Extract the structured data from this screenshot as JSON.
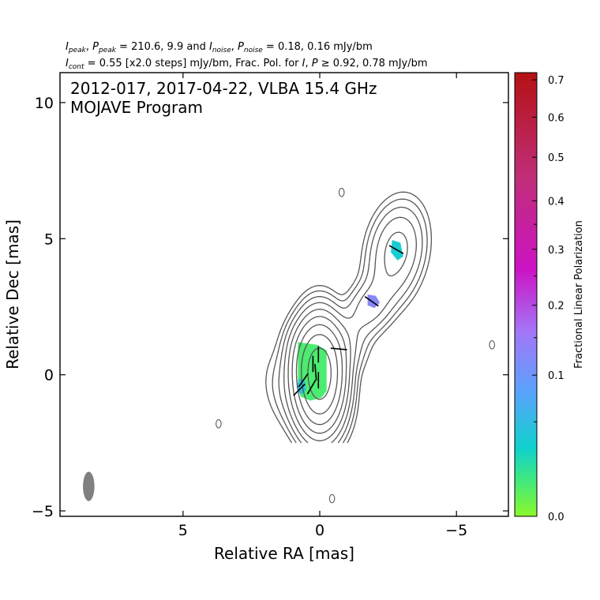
{
  "header": {
    "line1": [
      {
        "t": "I",
        "i": true
      },
      {
        "t": "peak",
        "sub": true
      },
      {
        "t": ", "
      },
      {
        "t": "P",
        "i": true
      },
      {
        "t": "peak",
        "sub": true
      },
      {
        "t": " = 210.6, 9.9 and "
      },
      {
        "t": "I",
        "i": true
      },
      {
        "t": "noise",
        "sub": true
      },
      {
        "t": ", "
      },
      {
        "t": "P",
        "i": true
      },
      {
        "t": "noise",
        "sub": true
      },
      {
        "t": " = 0.18, 0.16 mJy/bm"
      }
    ],
    "line2": [
      {
        "t": "I",
        "i": true
      },
      {
        "t": "cont",
        "sub": true
      },
      {
        "t": " = 0.55 [x2.0 steps] mJy/bm, Frac. Pol. for "
      },
      {
        "t": "I",
        "i": true
      },
      {
        "t": ", "
      },
      {
        "t": "P",
        "i": true
      },
      {
        "t": " ≥ 0.92, 0.78 mJy/bm"
      }
    ]
  },
  "chart_data": {
    "type": "contour",
    "title_lines": [
      "2012-017, 2017-04-22, VLBA 15.4 GHz",
      "MOJAVE Program"
    ],
    "xlabel": "Relative RA [mas]",
    "ylabel": "Relative Dec [mas]",
    "xlim": [
      9.5,
      -6.9
    ],
    "ylim": [
      -5.2,
      11.1
    ],
    "x_ticks": [
      {
        "value": 5,
        "label": "5"
      },
      {
        "value": 0,
        "label": "0"
      },
      {
        "value": -5,
        "label": "−5"
      }
    ],
    "y_ticks": [
      {
        "value": 10,
        "label": "10"
      },
      {
        "value": 5,
        "label": "5"
      },
      {
        "value": 0,
        "label": "0"
      },
      {
        "value": -5,
        "label": "−5"
      }
    ],
    "grid": false,
    "contour_base_mJy": 0.55,
    "contour_step_factor": 2.0,
    "contour_levels": 9,
    "contour_color": "#555555",
    "beam": {
      "x": 8.45,
      "y": -4.1,
      "major_mas": 1.08,
      "minor_mas": 0.42,
      "pa_deg": 0,
      "color": "#808080"
    },
    "components": [
      {
        "name": "core",
        "x": 0.0,
        "y": 0.0
      },
      {
        "name": "inner-jet",
        "x": -0.5,
        "y": 0.8
      },
      {
        "name": "jet-knot",
        "x": -1.9,
        "y": 2.6
      },
      {
        "name": "outer-knot",
        "x": -2.8,
        "y": 4.5
      }
    ],
    "noise_specks": [
      {
        "x": -0.8,
        "y": 6.7
      },
      {
        "x": 3.7,
        "y": -1.8
      },
      {
        "x": -6.3,
        "y": 1.1
      },
      {
        "x": -0.45,
        "y": -4.55
      }
    ],
    "polarization_patches": [
      {
        "name": "core-region",
        "fracpol": 0.05
      },
      {
        "name": "core-south",
        "fracpol": 0.14
      },
      {
        "name": "jet-knot",
        "fracpol": 0.26
      },
      {
        "name": "outer-knot",
        "fracpol": 0.12
      }
    ],
    "evpa_vectors": [
      {
        "x": -2.8,
        "y": 4.6,
        "angle_deg": 60
      },
      {
        "x": -1.9,
        "y": 2.7,
        "angle_deg": 55
      },
      {
        "x": -0.7,
        "y": 0.95,
        "angle_deg": 85
      },
      {
        "x": 0.05,
        "y": 0.75,
        "angle_deg": 0
      },
      {
        "x": 0.15,
        "y": 0.1,
        "angle_deg": 5
      },
      {
        "x": 0.25,
        "y": 0.4,
        "angle_deg": 0
      },
      {
        "x": 0.05,
        "y": -0.2,
        "angle_deg": 0
      },
      {
        "x": 0.3,
        "y": -0.45,
        "angle_deg": -30
      },
      {
        "x": 0.6,
        "y": -0.2,
        "angle_deg": -35
      },
      {
        "x": 0.75,
        "y": -0.55,
        "angle_deg": -45
      }
    ],
    "colorbar": {
      "label": "Fractional Linear Polarization",
      "range": [
        0.0,
        0.72
      ],
      "tick_labels": [
        {
          "value": 0.0,
          "label": "0.0"
        },
        {
          "value": 0.1,
          "label": "0.1"
        },
        {
          "value": 0.2,
          "label": "0.2"
        },
        {
          "value": 0.3,
          "label": "0.3"
        },
        {
          "value": 0.4,
          "label": "0.4"
        },
        {
          "value": 0.5,
          "label": "0.5"
        },
        {
          "value": 0.6,
          "label": "0.6"
        },
        {
          "value": 0.7,
          "label": "0.7"
        }
      ],
      "minor_ticks": [
        0.05,
        0.15,
        0.25,
        0.35
      ],
      "stops": [
        {
          "v": 0.0,
          "color": "#8cf82a"
        },
        {
          "v": 0.06,
          "color": "#3fe87f"
        },
        {
          "v": 0.11,
          "color": "#0fd2cc"
        },
        {
          "v": 0.2,
          "color": "#58a4fc"
        },
        {
          "v": 0.3,
          "color": "#a476f6"
        },
        {
          "v": 0.4,
          "color": "#cc14c4"
        },
        {
          "v": 0.55,
          "color": "#c02e78"
        },
        {
          "v": 0.72,
          "color": "#b41114"
        }
      ]
    }
  }
}
